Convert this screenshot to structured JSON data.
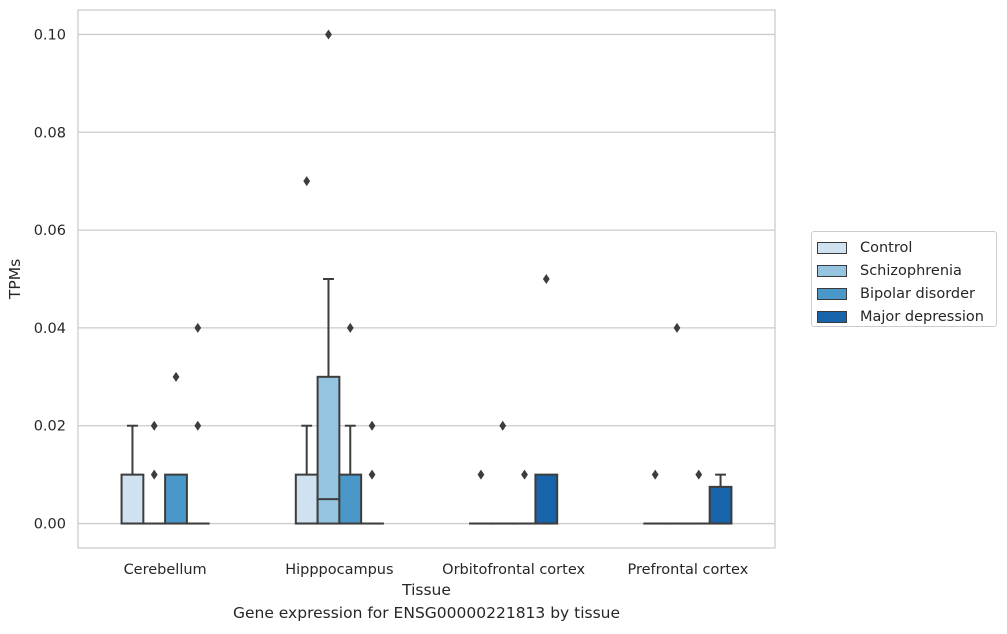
{
  "chart_data": {
    "type": "box",
    "title": "",
    "caption": "Gene expression for ENSG00000221813 by tissue",
    "xlabel": "Tissue",
    "ylabel": "TPMs",
    "ylim": [
      -0.005,
      0.105
    ],
    "yticks": [
      0.0,
      0.02,
      0.04,
      0.06,
      0.08,
      0.1
    ],
    "ytick_labels": [
      "0.00",
      "0.02",
      "0.04",
      "0.06",
      "0.08",
      "0.10"
    ],
    "grid": "horizontal",
    "legend_position": "right",
    "categories": [
      "Cerebellum",
      "Hipppocampus",
      "Orbitofrontal cortex",
      "Prefrontal cortex"
    ],
    "series": [
      {
        "name": "Control",
        "color": "#d0e1f2",
        "boxes": [
          {
            "min": 0,
            "q1": 0,
            "median": 0,
            "q3": 0.01,
            "max": 0.02,
            "outliers": []
          },
          {
            "min": 0,
            "q1": 0,
            "median": 0,
            "q3": 0.01,
            "max": 0.02,
            "outliers": [
              0.07
            ]
          },
          {
            "min": 0,
            "q1": 0,
            "median": 0,
            "q3": 0,
            "max": 0,
            "outliers": [
              0.01
            ]
          },
          {
            "min": 0,
            "q1": 0,
            "median": 0,
            "q3": 0,
            "max": 0,
            "outliers": [
              0.01
            ]
          }
        ]
      },
      {
        "name": "Schizophrenia",
        "color": "#94c4df",
        "boxes": [
          {
            "min": 0,
            "q1": 0,
            "median": 0,
            "q3": 0,
            "max": 0,
            "outliers": [
              0.01,
              0.02
            ]
          },
          {
            "min": 0,
            "q1": 0,
            "median": 0.005,
            "q3": 0.03,
            "max": 0.05,
            "outliers": [
              0.1
            ]
          },
          {
            "min": 0,
            "q1": 0,
            "median": 0,
            "q3": 0,
            "max": 0,
            "outliers": [
              0.02
            ]
          },
          {
            "min": 0,
            "q1": 0,
            "median": 0,
            "q3": 0,
            "max": 0,
            "outliers": [
              0.04
            ]
          }
        ]
      },
      {
        "name": "Bipolar disorder",
        "color": "#4a98c9",
        "boxes": [
          {
            "min": 0,
            "q1": 0,
            "median": 0,
            "q3": 0.01,
            "max": 0.01,
            "outliers": [
              0.03
            ]
          },
          {
            "min": 0,
            "q1": 0,
            "median": 0,
            "q3": 0.01,
            "max": 0.02,
            "outliers": [
              0.04
            ]
          },
          {
            "min": 0,
            "q1": 0,
            "median": 0,
            "q3": 0,
            "max": 0,
            "outliers": [
              0.01
            ]
          },
          {
            "min": 0,
            "q1": 0,
            "median": 0,
            "q3": 0,
            "max": 0,
            "outliers": [
              0.01
            ]
          }
        ]
      },
      {
        "name": "Major depression",
        "color": "#1764ab",
        "boxes": [
          {
            "min": 0,
            "q1": 0,
            "median": 0,
            "q3": 0,
            "max": 0,
            "outliers": [
              0.02,
              0.04
            ]
          },
          {
            "min": 0,
            "q1": 0,
            "median": 0,
            "q3": 0,
            "max": 0,
            "outliers": [
              0.01,
              0.02
            ]
          },
          {
            "min": 0,
            "q1": 0,
            "median": 0,
            "q3": 0.01,
            "max": 0.01,
            "outliers": [
              0.05
            ]
          },
          {
            "min": 0,
            "q1": 0,
            "median": 0,
            "q3": 0.0075,
            "max": 0.01,
            "outliers": []
          }
        ]
      }
    ]
  }
}
